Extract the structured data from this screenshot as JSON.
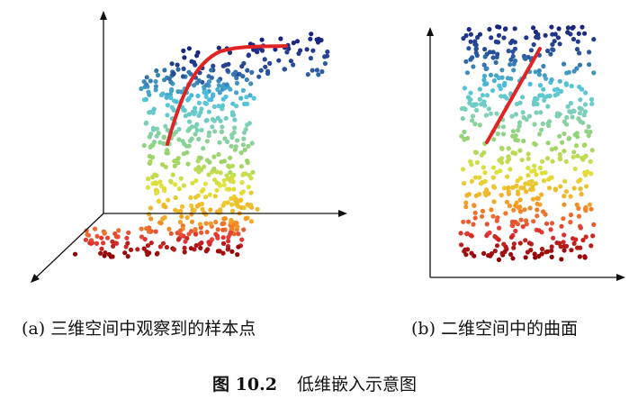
{
  "figure": {
    "number": "图 10.2",
    "title": "低维嵌入示意图"
  },
  "panels": [
    {
      "id": "a",
      "label": "(a) 三维空间中观察到的样本点"
    },
    {
      "id": "b",
      "label": "(b) 二维空间中的曲面"
    }
  ],
  "colors": {
    "curve": "#e02424",
    "axis": "#111111",
    "gradient": [
      "#1a237e",
      "#2c5aa0",
      "#4fc3dc",
      "#7fd0b8",
      "#9bd46a",
      "#e2e23a",
      "#f5a623",
      "#e53935",
      "#8b0000"
    ]
  }
}
